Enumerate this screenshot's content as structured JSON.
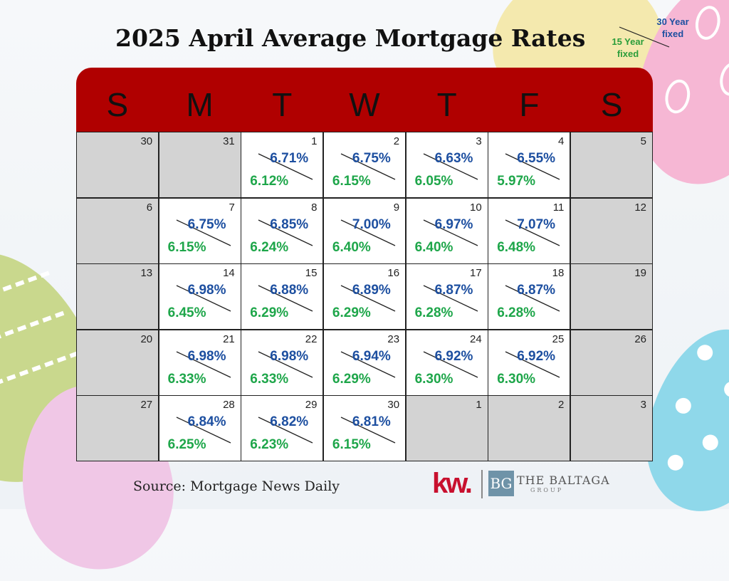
{
  "title": "2025 April Average Mortgage Rates",
  "legend": {
    "label_30": "30 Year fixed",
    "label_15": "15 Year fixed"
  },
  "colors": {
    "header_red": "#b00000",
    "rate_30_blue": "#1d4fa0",
    "rate_15_green": "#1ea64a",
    "inactive_gray": "#d3d3d3"
  },
  "days": [
    "S",
    "M",
    "T",
    "W",
    "T",
    "F",
    "S"
  ],
  "weeks": [
    [
      {
        "num": "30",
        "gray": true
      },
      {
        "num": "31",
        "gray": true
      },
      {
        "num": "1",
        "r30": "6.71%",
        "r15": "6.12%"
      },
      {
        "num": "2",
        "r30": "6.75%",
        "r15": "6.15%"
      },
      {
        "num": "3",
        "r30": "6.63%",
        "r15": "6.05%"
      },
      {
        "num": "4",
        "r30": "6.55%",
        "r15": "5.97%"
      },
      {
        "num": "5",
        "gray": true
      }
    ],
    [
      {
        "num": "6",
        "gray": true
      },
      {
        "num": "7",
        "r30": "6.75%",
        "r15": "6.15%"
      },
      {
        "num": "8",
        "r30": "6.85%",
        "r15": "6.24%"
      },
      {
        "num": "9",
        "r30": "7.00%",
        "r15": "6.40%"
      },
      {
        "num": "10",
        "r30": "6.97%",
        "r15": "6.40%"
      },
      {
        "num": "11",
        "r30": "7.07%",
        "r15": "6.48%"
      },
      {
        "num": "12",
        "gray": true
      }
    ],
    [
      {
        "num": "13",
        "gray": true
      },
      {
        "num": "14",
        "r30": "6.98%",
        "r15": "6.45%"
      },
      {
        "num": "15",
        "r30": "6.88%",
        "r15": "6.29%"
      },
      {
        "num": "16",
        "r30": "6.89%",
        "r15": "6.29%"
      },
      {
        "num": "17",
        "r30": "6.87%",
        "r15": "6.28%"
      },
      {
        "num": "18",
        "r30": "6.87%",
        "r15": "6.28%"
      },
      {
        "num": "19",
        "gray": true
      }
    ],
    [
      {
        "num": "20",
        "gray": true
      },
      {
        "num": "21",
        "r30": "6.98%",
        "r15": "6.33%"
      },
      {
        "num": "22",
        "r30": "6.98%",
        "r15": "6.33%"
      },
      {
        "num": "23",
        "r30": "6.94%",
        "r15": "6.29%"
      },
      {
        "num": "24",
        "r30": "6.92%",
        "r15": "6.30%"
      },
      {
        "num": "25",
        "r30": "6.92%",
        "r15": "6.30%"
      },
      {
        "num": "26",
        "gray": true
      }
    ],
    [
      {
        "num": "27",
        "gray": true
      },
      {
        "num": "28",
        "r30": "6.84%",
        "r15": "6.25%"
      },
      {
        "num": "29",
        "r30": "6.82%",
        "r15": "6.23%"
      },
      {
        "num": "30",
        "r30": "6.81%",
        "r15": "6.15%"
      },
      {
        "num": "1",
        "gray": true
      },
      {
        "num": "2",
        "gray": true
      },
      {
        "num": "3",
        "gray": true
      }
    ]
  ],
  "source": "Source: Mortgage News Daily",
  "branding": {
    "kw": "kw.",
    "bg_mark": "BG",
    "company": "THE BALTAGA",
    "company_sub": "GROUP"
  }
}
